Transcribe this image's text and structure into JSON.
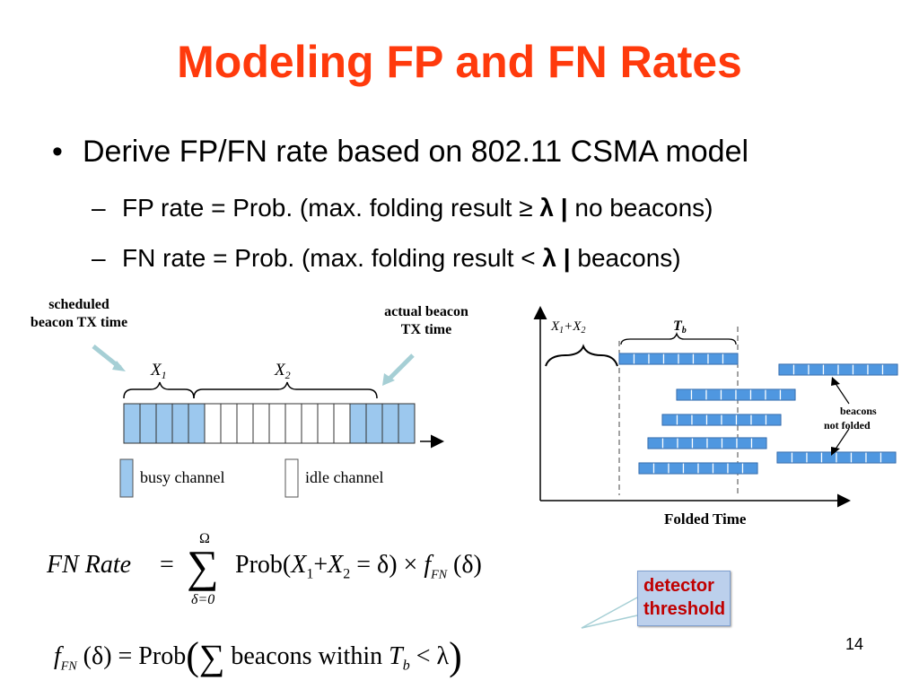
{
  "slide": {
    "title": "Modeling FP and FN Rates",
    "page_number": "14",
    "accent_color": "#ff3a0c"
  },
  "bullets": {
    "main": "Derive FP/FN rate based on 802.11 CSMA model",
    "fp": {
      "prefix": "FP rate = Prob. (max. folding result ≥ ",
      "lambda": "λ",
      "bar": "|",
      "suffix": " no beacons)"
    },
    "fn": {
      "prefix": "FN rate = Prob. (max. folding result < ",
      "lambda": "λ",
      "bar": "|",
      "suffix": " beacons)"
    },
    "bullet_glyph": "•",
    "dash_glyph": "–"
  },
  "left_diagram": {
    "label_scheduled": [
      "scheduled",
      "beacon TX time"
    ],
    "label_actual": [
      "actual beacon",
      "TX time"
    ],
    "x1": "X",
    "x1_sub": "1",
    "x2": "X",
    "x2_sub": "2",
    "legend_busy": "busy channel",
    "legend_idle": "idle channel",
    "busy_color": "#9cc8ee",
    "slot_pattern": [
      "busy",
      "busy",
      "busy",
      "busy",
      "busy",
      "idle",
      "idle",
      "idle",
      "idle",
      "idle",
      "idle",
      "idle",
      "idle",
      "idle",
      "busy",
      "busy",
      "busy",
      "busy"
    ]
  },
  "right_diagram": {
    "brace_label": "X",
    "brace_label_sub1": "1",
    "plus": "+X",
    "brace_label_sub2": "2",
    "tb_label": "T",
    "tb_sub": "b",
    "annotation": [
      "beacons",
      "not  folded"
    ],
    "x_axis_label": "Folded Time"
  },
  "formulas": {
    "fn_rate_lhs": "FN Rate",
    "equals": "=",
    "sum_upper": "Ω",
    "sum_lower": "δ=0",
    "sum_sign": "∑",
    "prob": "Prob(",
    "x1": "X",
    "x1_sub": "1",
    "plus": "+",
    "x2": "X",
    "x2_sub": "2",
    "eq_delta": " = δ) × ",
    "f": "f",
    "f_sub": "FN",
    "arg": " (δ)",
    "f2": "f",
    "f2_sub": "FN",
    "f2_arg": " (δ) = Prob",
    "open_paren": "(",
    "inner": "beacons within ",
    "tb": "T",
    "tb_sub": "b",
    "lt_lambda": " < λ",
    "close_paren": ")"
  },
  "callout": {
    "lines": [
      "detector",
      "threshold"
    ],
    "text_color": "#c00000",
    "fill_color": "#bcd0ec"
  }
}
